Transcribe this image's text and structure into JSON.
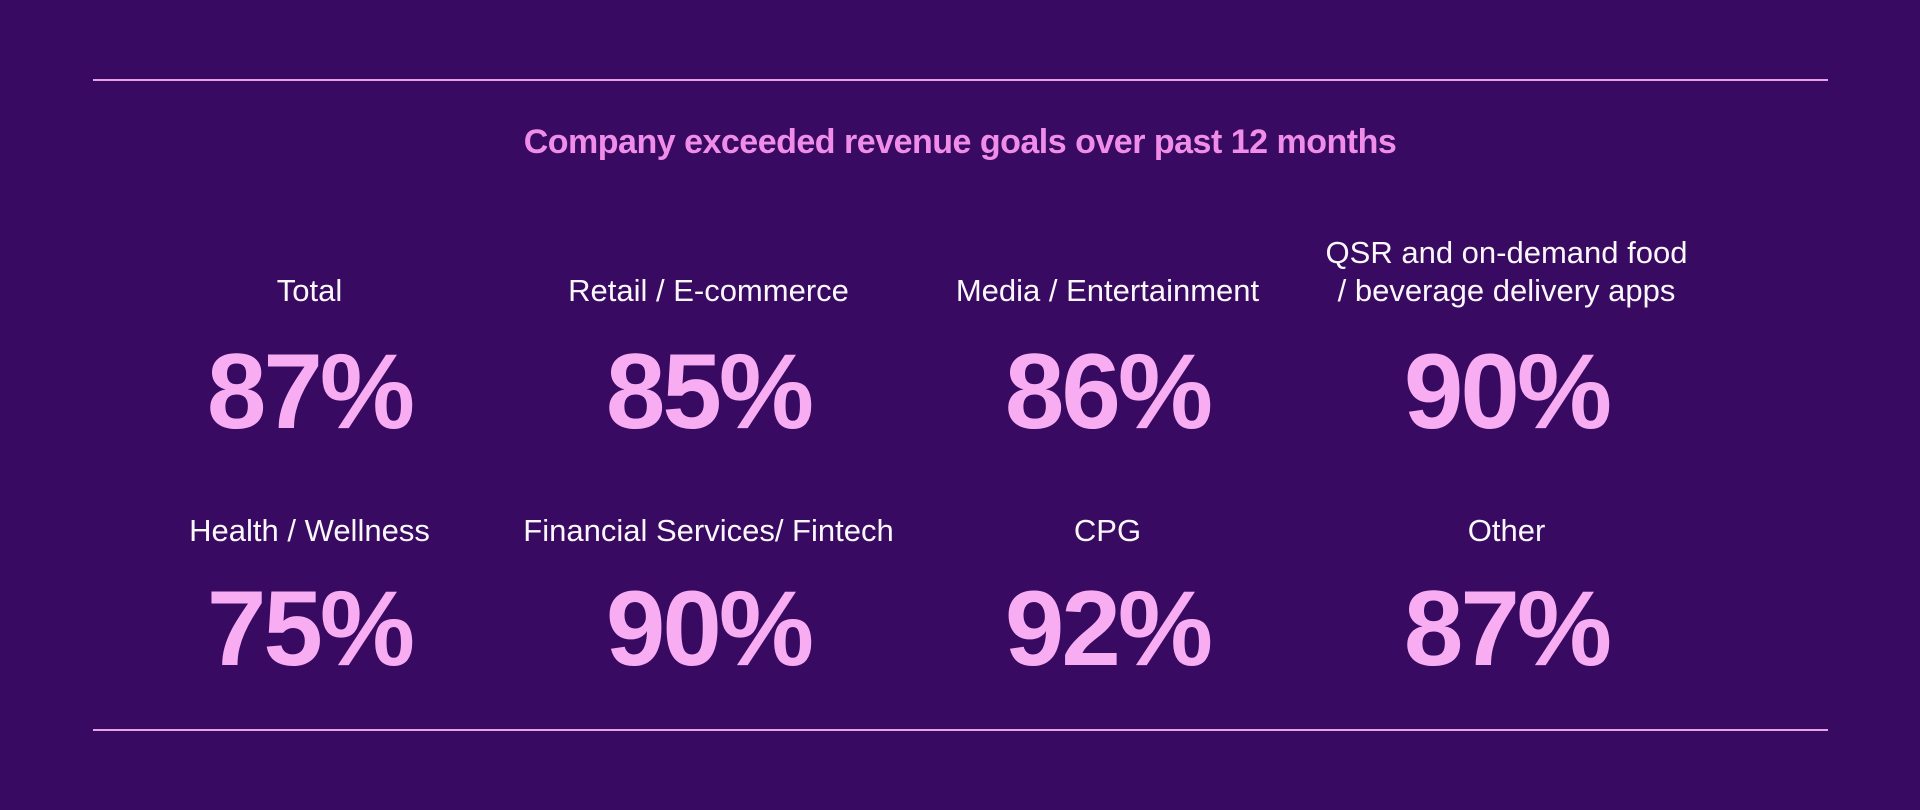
{
  "title": "Company exceeded revenue goals over past 12 months",
  "colors": {
    "background": "#390A61",
    "title_pink": "#F08DE9",
    "rule_pink": "#ECA0E6",
    "value_pink": "#F8ADF3",
    "label_white": "#FAF7FB"
  },
  "stats": {
    "row1": [
      {
        "label": "Total",
        "value": "87%"
      },
      {
        "label": "Retail / E-commerce",
        "value": "85%"
      },
      {
        "label": "Media / Entertainment",
        "value": "86%"
      },
      {
        "label": "QSR and on-demand food\n/ beverage delivery apps",
        "value": "90%"
      }
    ],
    "row2": [
      {
        "label": "Health / Wellness",
        "value": "75%"
      },
      {
        "label": "Financial Services/ Fintech",
        "value": "90%"
      },
      {
        "label": "CPG",
        "value": "92%"
      },
      {
        "label": "Other",
        "value": "87%"
      }
    ]
  },
  "chart_data": {
    "type": "table",
    "title": "Company exceeded revenue goals over past 12 months",
    "categories": [
      "Total",
      "Retail / E-commerce",
      "Media / Entertainment",
      "QSR and on-demand food / beverage delivery apps",
      "Health / Wellness",
      "Financial Services/ Fintech",
      "CPG",
      "Other"
    ],
    "values": [
      87,
      85,
      86,
      90,
      75,
      90,
      92,
      87
    ],
    "unit": "%",
    "layout": "big-number stat grid, 2 rows x 4 columns, horizontal rules above and below"
  }
}
